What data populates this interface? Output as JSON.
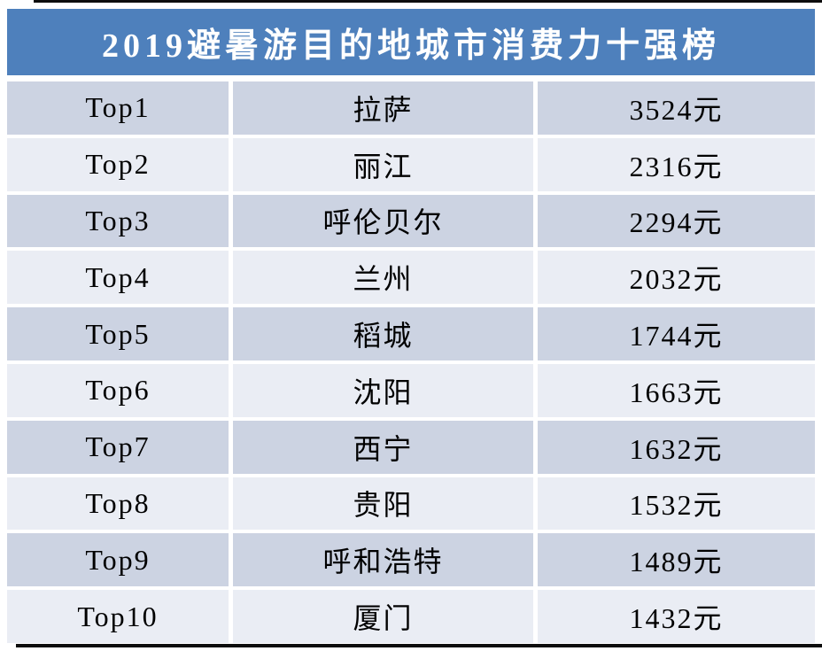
{
  "page": {
    "title": "2019避暑游目的地城市消费力十强榜"
  },
  "colors": {
    "header_bg": "#4e80bc",
    "row_dark": "#ccd3e2",
    "row_light": "#eaedf4",
    "title_text": "#ffffff",
    "cell_text": "#000000",
    "background": "#ffffff",
    "edge_line": "#0d0d0d"
  },
  "chart_data": {
    "type": "table",
    "title": "2019避暑游目的地城市消费力十强榜",
    "unit": "元",
    "rows": [
      {
        "rank": "Top1",
        "city": "拉萨",
        "price_label": "3524元",
        "price_value": 3524
      },
      {
        "rank": "Top2",
        "city": "丽江",
        "price_label": "2316元",
        "price_value": 2316
      },
      {
        "rank": "Top3",
        "city": "呼伦贝尔",
        "price_label": "2294元",
        "price_value": 2294
      },
      {
        "rank": "Top4",
        "city": "兰州",
        "price_label": "2032元",
        "price_value": 2032
      },
      {
        "rank": "Top5",
        "city": "稻城",
        "price_label": "1744元",
        "price_value": 1744
      },
      {
        "rank": "Top6",
        "city": "沈阳",
        "price_label": "1663元",
        "price_value": 1663
      },
      {
        "rank": "Top7",
        "city": "西宁",
        "price_label": "1632元",
        "price_value": 1632
      },
      {
        "rank": "Top8",
        "city": "贵阳",
        "price_label": "1532元",
        "price_value": 1532
      },
      {
        "rank": "Top9",
        "city": "呼和浩特",
        "price_label": "1489元",
        "price_value": 1489
      },
      {
        "rank": "Top10",
        "city": "厦门",
        "price_label": "1432元",
        "price_value": 1432
      }
    ]
  }
}
